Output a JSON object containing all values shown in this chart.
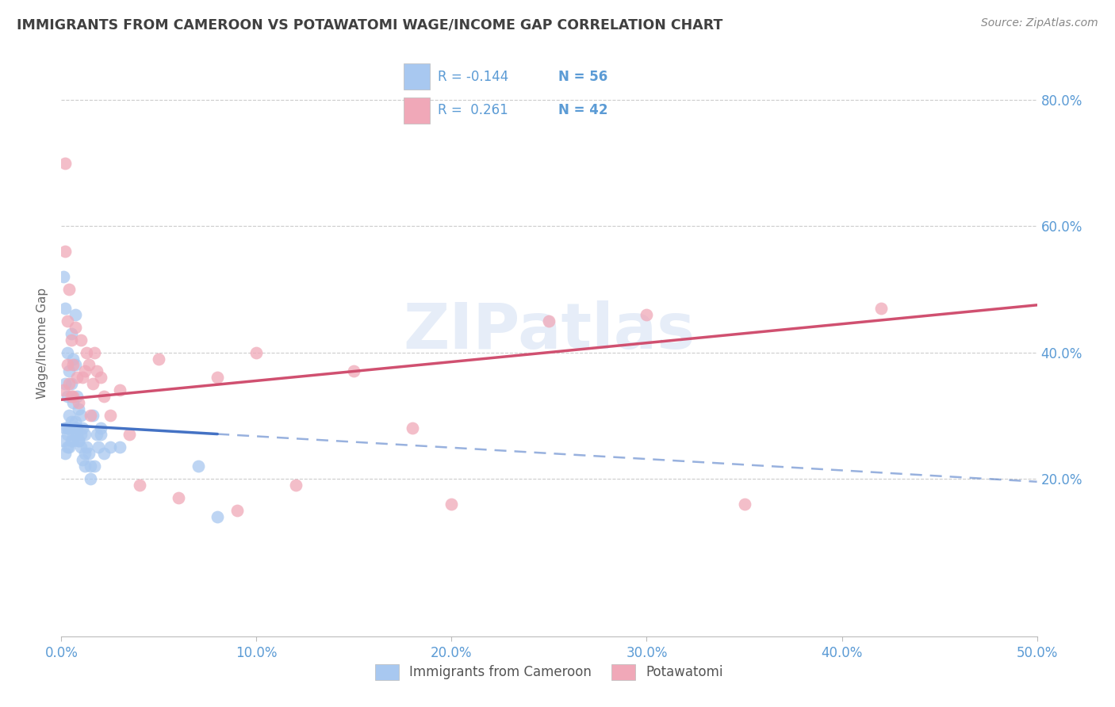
{
  "title": "IMMIGRANTS FROM CAMEROON VS POTAWATOMI WAGE/INCOME GAP CORRELATION CHART",
  "source": "Source: ZipAtlas.com",
  "ylabel": "Wage/Income Gap",
  "legend_label1": "Immigrants from Cameroon",
  "legend_label2": "Potawatomi",
  "R1": -0.144,
  "N1": 56,
  "R2": 0.261,
  "N2": 42,
  "color1": "#A8C8F0",
  "color2": "#F0A8B8",
  "line_color1": "#4472C4",
  "line_color2": "#D05070",
  "bg_color": "#FFFFFF",
  "grid_color": "#CCCCCC",
  "axis_label_color": "#5B9BD5",
  "title_color": "#404040",
  "watermark": "ZIPatlas",
  "xmin": 0.0,
  "xmax": 0.5,
  "ymin": -0.05,
  "ymax": 0.88,
  "x_ticks": [
    0.0,
    0.1,
    0.2,
    0.3,
    0.4,
    0.5
  ],
  "y_ticks": [
    0.2,
    0.4,
    0.6,
    0.8
  ],
  "blue_x": [
    0.001,
    0.001,
    0.002,
    0.002,
    0.002,
    0.003,
    0.003,
    0.003,
    0.003,
    0.004,
    0.004,
    0.004,
    0.005,
    0.005,
    0.005,
    0.006,
    0.006,
    0.006,
    0.007,
    0.007,
    0.007,
    0.008,
    0.008,
    0.009,
    0.009,
    0.01,
    0.01,
    0.011,
    0.011,
    0.012,
    0.012,
    0.013,
    0.014,
    0.015,
    0.016,
    0.017,
    0.018,
    0.019,
    0.02,
    0.022,
    0.002,
    0.003,
    0.004,
    0.005,
    0.006,
    0.007,
    0.008,
    0.009,
    0.01,
    0.012,
    0.015,
    0.02,
    0.025,
    0.03,
    0.07,
    0.08
  ],
  "blue_y": [
    0.52,
    0.26,
    0.47,
    0.35,
    0.28,
    0.4,
    0.33,
    0.28,
    0.25,
    0.37,
    0.3,
    0.25,
    0.43,
    0.35,
    0.26,
    0.39,
    0.32,
    0.26,
    0.46,
    0.38,
    0.28,
    0.33,
    0.27,
    0.31,
    0.26,
    0.3,
    0.25,
    0.28,
    0.23,
    0.27,
    0.22,
    0.25,
    0.24,
    0.2,
    0.3,
    0.22,
    0.27,
    0.25,
    0.28,
    0.24,
    0.24,
    0.27,
    0.28,
    0.29,
    0.27,
    0.29,
    0.28,
    0.26,
    0.27,
    0.24,
    0.22,
    0.27,
    0.25,
    0.25,
    0.22,
    0.14
  ],
  "pink_x": [
    0.001,
    0.002,
    0.002,
    0.003,
    0.003,
    0.004,
    0.004,
    0.005,
    0.005,
    0.006,
    0.006,
    0.007,
    0.008,
    0.009,
    0.01,
    0.011,
    0.012,
    0.013,
    0.014,
    0.015,
    0.016,
    0.017,
    0.018,
    0.02,
    0.022,
    0.025,
    0.03,
    0.035,
    0.04,
    0.05,
    0.06,
    0.08,
    0.09,
    0.1,
    0.12,
    0.15,
    0.18,
    0.2,
    0.25,
    0.3,
    0.35,
    0.42
  ],
  "pink_y": [
    0.34,
    0.7,
    0.56,
    0.45,
    0.38,
    0.5,
    0.35,
    0.42,
    0.33,
    0.38,
    0.33,
    0.44,
    0.36,
    0.32,
    0.42,
    0.36,
    0.37,
    0.4,
    0.38,
    0.3,
    0.35,
    0.4,
    0.37,
    0.36,
    0.33,
    0.3,
    0.34,
    0.27,
    0.19,
    0.39,
    0.17,
    0.36,
    0.15,
    0.4,
    0.19,
    0.37,
    0.28,
    0.16,
    0.45,
    0.46,
    0.16,
    0.47
  ],
  "blue_line_x0": 0.0,
  "blue_line_y0": 0.285,
  "blue_line_x1": 0.5,
  "blue_line_y1": 0.195,
  "blue_line_solid_end": 0.08,
  "pink_line_x0": 0.0,
  "pink_line_y0": 0.325,
  "pink_line_x1": 0.5,
  "pink_line_y1": 0.475
}
